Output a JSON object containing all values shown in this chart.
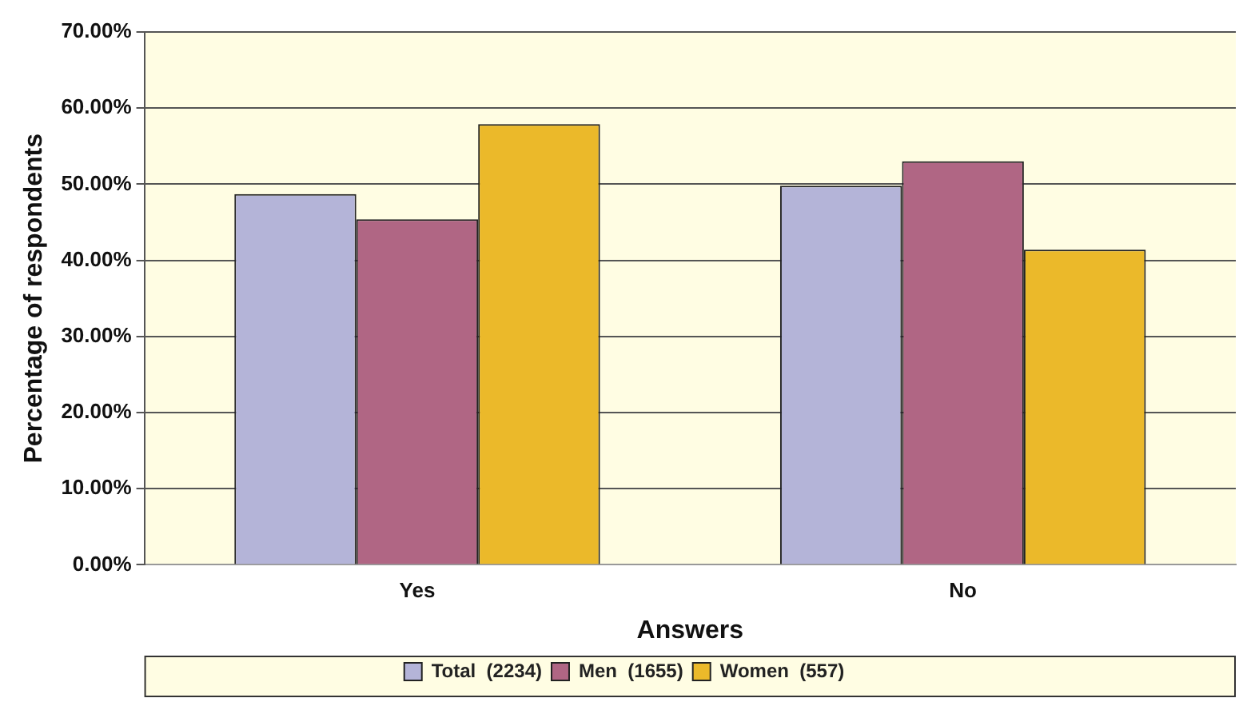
{
  "chart_data": {
    "type": "bar",
    "xlabel": "Answers",
    "ylabel": "Percentage of respondents",
    "categories": [
      "Yes",
      "No"
    ],
    "series": [
      {
        "name": "Total  (2234)",
        "color": "#b4b4d8",
        "values": [
          48.7,
          49.8
        ]
      },
      {
        "name": "Men  (1655)",
        "color": "#b06684",
        "values": [
          45.4,
          53.0
        ]
      },
      {
        "name": "Women  (557)",
        "color": "#ebb92a",
        "values": [
          57.9,
          41.4
        ]
      }
    ],
    "ylim": [
      0,
      70
    ],
    "yticks": [
      {
        "value": 0,
        "label": "0.00%"
      },
      {
        "value": 10,
        "label": "10.00%"
      },
      {
        "value": 20,
        "label": "20.00%"
      },
      {
        "value": 30,
        "label": "30.00%"
      },
      {
        "value": 40,
        "label": "40.00%"
      },
      {
        "value": 50,
        "label": "50.00%"
      },
      {
        "value": 60,
        "label": "60.00%"
      },
      {
        "value": 70,
        "label": "70.00%"
      }
    ],
    "grid": "y",
    "legend": "bottom"
  }
}
